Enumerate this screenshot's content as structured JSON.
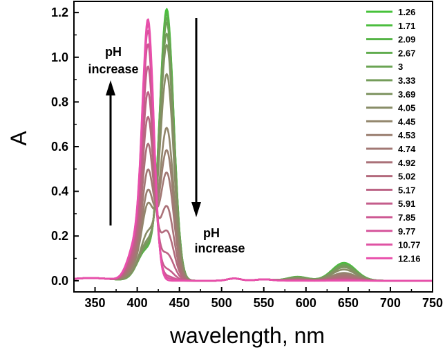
{
  "chart_data": {
    "type": "line",
    "title": "",
    "xlabel": "wavelength, nm",
    "ylabel": "A",
    "xlim": [
      325,
      750
    ],
    "ylim": [
      -0.05,
      1.25
    ],
    "x_ticks": [
      350,
      400,
      450,
      500,
      550,
      600,
      650,
      700,
      750
    ],
    "y_ticks": [
      0.0,
      0.2,
      0.4,
      0.6,
      0.8,
      1.0,
      1.2
    ],
    "x_tick_labels": [
      "350",
      "400",
      "450",
      "500",
      "550",
      "600",
      "650",
      "700",
      "750"
    ],
    "y_tick_labels": [
      "0.0",
      "0.2",
      "0.4",
      "0.6",
      "0.8",
      "1.0",
      "1.2"
    ],
    "legend_position": "right",
    "annotations": {
      "up": {
        "line1": "pH",
        "line2": "increase"
      },
      "down": {
        "line1": "pH",
        "line2": "increase"
      }
    },
    "series": [
      {
        "name": "1.26",
        "color": "#46c23a",
        "peak435": 1.21,
        "peak413": 0.0,
        "band645": 0.08
      },
      {
        "name": "1.71",
        "color": "#4cbd3f",
        "peak435": 1.2,
        "peak413": 0.0,
        "band645": 0.078
      },
      {
        "name": "2.09",
        "color": "#55b446",
        "peak435": 1.19,
        "peak413": 0.0,
        "band645": 0.076
      },
      {
        "name": "2.67",
        "color": "#60ac4e",
        "peak435": 1.17,
        "peak413": 0.01,
        "band645": 0.072
      },
      {
        "name": "3",
        "color": "#6aa453",
        "peak435": 1.15,
        "peak413": 0.02,
        "band645": 0.07
      },
      {
        "name": "3.33",
        "color": "#749c5a",
        "peak435": 1.1,
        "peak413": 0.03,
        "band645": 0.065
      },
      {
        "name": "3.69",
        "color": "#7e9461",
        "peak435": 1.05,
        "peak413": 0.05,
        "band645": 0.06
      },
      {
        "name": "4.05",
        "color": "#888c66",
        "peak435": 0.92,
        "peak413": 0.1,
        "band645": 0.05
      },
      {
        "name": "4.45",
        "color": "#92866c",
        "peak435": 0.68,
        "peak413": 0.25,
        "band645": 0.035
      },
      {
        "name": "4.53",
        "color": "#9a7f70",
        "peak435": 0.58,
        "peak413": 0.32,
        "band645": 0.03
      },
      {
        "name": "4.74",
        "color": "#a27874",
        "peak435": 0.48,
        "peak413": 0.42,
        "band645": 0.025
      },
      {
        "name": "4.92",
        "color": "#aa7178",
        "peak435": 0.33,
        "peak413": 0.55,
        "band645": 0.018
      },
      {
        "name": "5.02",
        "color": "#b36a7d",
        "peak435": 0.22,
        "peak413": 0.68,
        "band645": 0.012
      },
      {
        "name": "5.17",
        "color": "#bc6384",
        "peak435": 0.12,
        "peak413": 0.8,
        "band645": 0.008
      },
      {
        "name": "5.91",
        "color": "#c45d8b",
        "peak435": 0.05,
        "peak413": 0.92,
        "band645": 0.005
      },
      {
        "name": "7.85",
        "color": "#cd5893",
        "peak435": 0.02,
        "peak413": 1.02,
        "band645": 0.003
      },
      {
        "name": "9.77",
        "color": "#d6559b",
        "peak435": 0.01,
        "peak413": 1.08,
        "band645": 0.002
      },
      {
        "name": "10.77",
        "color": "#df52a3",
        "peak435": 0.0,
        "peak413": 1.11,
        "band645": 0.001
      },
      {
        "name": "12.16",
        "color": "#e84fab",
        "peak435": 0.0,
        "peak413": 1.13,
        "band645": 0.0
      }
    ]
  }
}
